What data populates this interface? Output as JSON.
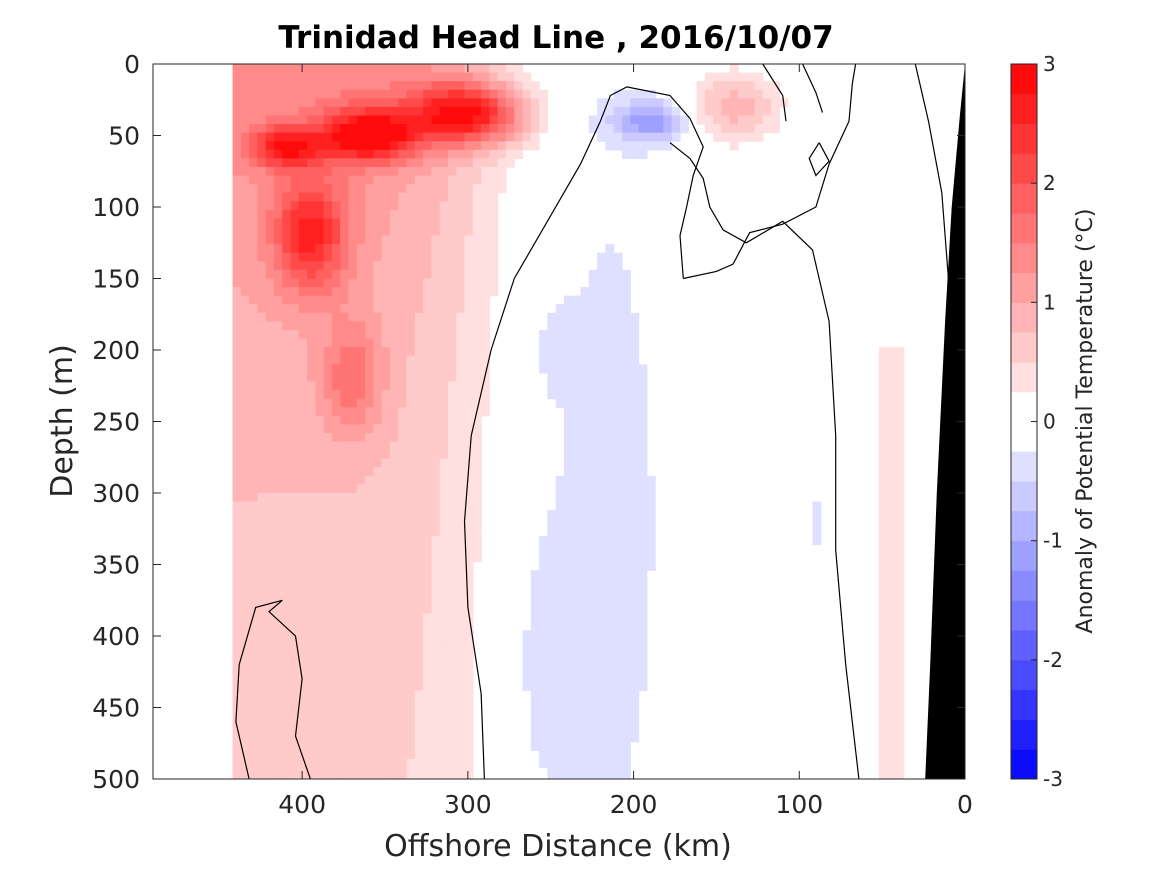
{
  "chart_data": {
    "type": "heatmap",
    "title": "Trinidad Head Line , 2016/10/07",
    "xlabel": "Offshore Distance (km)",
    "ylabel": "Depth (m)",
    "x_axis": {
      "range": [
        490,
        0
      ],
      "reversed": true,
      "ticks": [
        400,
        300,
        200,
        100,
        0
      ],
      "tick_labels": [
        "400",
        "300",
        "200",
        "100",
        "0"
      ]
    },
    "y_axis": {
      "range": [
        0,
        500
      ],
      "reversed": true,
      "ticks": [
        0,
        50,
        100,
        150,
        200,
        250,
        300,
        350,
        400,
        450,
        500
      ],
      "tick_labels": [
        "0",
        "50",
        "100",
        "150",
        "200",
        "250",
        "300",
        "350",
        "400",
        "450",
        "500"
      ]
    },
    "colorbar": {
      "label": "Anomaly of Potential Temperature (°C)",
      "range": [
        -3,
        3
      ],
      "ticks": [
        3,
        2,
        1,
        0,
        -1,
        -2,
        -3
      ],
      "tick_labels": [
        "3",
        "2",
        "1",
        "0",
        "-1",
        "-2",
        "-3"
      ],
      "levels": [
        -3,
        -2.75,
        -2.5,
        -2.25,
        -2,
        -1.75,
        -1.5,
        -1.25,
        -1,
        -0.75,
        -0.5,
        -0.25,
        0,
        0.25,
        0.5,
        0.75,
        1,
        1.25,
        1.5,
        1.75,
        2,
        2.25,
        2.5,
        2.75,
        3
      ],
      "colormap": "blue-white-red",
      "neg_color": "#0000ff",
      "pos_color": "#ff0000"
    },
    "zero_contour": true,
    "data_start_km": 442,
    "bathymetry_color": "#000000",
    "bathymetry": [
      [
        0,
        0
      ],
      [
        3,
        35
      ],
      [
        8,
        100
      ],
      [
        12,
        180
      ],
      [
        17,
        300
      ],
      [
        21,
        420
      ],
      [
        24,
        500
      ]
    ],
    "features": [
      {
        "type": "warm_core",
        "center_km": 300,
        "center_depth": 35,
        "anomaly": 2.9
      },
      {
        "type": "warm_core",
        "center_km": 360,
        "center_depth": 50,
        "anomaly": 2.8
      },
      {
        "type": "warm_core",
        "center_km": 410,
        "center_depth": 58,
        "anomaly": 2.2
      },
      {
        "type": "warm_core",
        "center_km": 395,
        "center_depth": 120,
        "anomaly": 2.3
      },
      {
        "type": "warm",
        "center_km": 370,
        "center_depth": 220,
        "anomaly": 1.4
      },
      {
        "type": "warm",
        "center_km": 140,
        "center_depth": 30,
        "anomaly": 0.9
      },
      {
        "type": "cold_core",
        "center_km": 190,
        "center_depth": 40,
        "anomaly": -0.9
      },
      {
        "type": "cold",
        "center_km": 255,
        "center_depth": 420,
        "anomaly": -0.45
      },
      {
        "type": "cold",
        "center_km": 90,
        "center_depth": 300,
        "anomaly": -0.3
      },
      {
        "type": "warm",
        "center_km": 45,
        "center_depth": 400,
        "anomaly": 0.3
      }
    ]
  }
}
